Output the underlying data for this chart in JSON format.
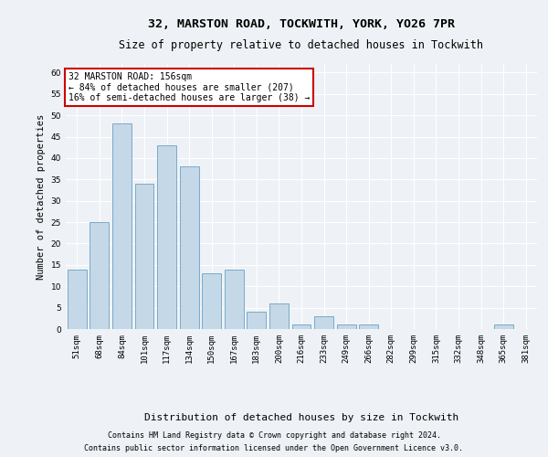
{
  "title": "32, MARSTON ROAD, TOCKWITH, YORK, YO26 7PR",
  "subtitle": "Size of property relative to detached houses in Tockwith",
  "xlabel": "Distribution of detached houses by size in Tockwith",
  "ylabel": "Number of detached properties",
  "categories": [
    "51sqm",
    "68sqm",
    "84sqm",
    "101sqm",
    "117sqm",
    "134sqm",
    "150sqm",
    "167sqm",
    "183sqm",
    "200sqm",
    "216sqm",
    "233sqm",
    "249sqm",
    "266sqm",
    "282sqm",
    "299sqm",
    "315sqm",
    "332sqm",
    "348sqm",
    "365sqm",
    "381sqm"
  ],
  "values": [
    14,
    25,
    48,
    34,
    43,
    38,
    13,
    14,
    4,
    6,
    1,
    3,
    1,
    1,
    0,
    0,
    0,
    0,
    0,
    1,
    0
  ],
  "bar_color": "#c5d8e8",
  "bar_edge_color": "#7aaac8",
  "bg_color": "#eef2f6",
  "ylim": [
    0,
    62
  ],
  "yticks": [
    0,
    5,
    10,
    15,
    20,
    25,
    30,
    35,
    40,
    45,
    50,
    55,
    60
  ],
  "annotation_box_text": "32 MARSTON ROAD: 156sqm\n← 84% of detached houses are smaller (207)\n16% of semi-detached houses are larger (38) →",
  "annotation_box_color": "#cc0000",
  "annotation_box_bg": "#ffffff",
  "footer_line1": "Contains HM Land Registry data © Crown copyright and database right 2024.",
  "footer_line2": "Contains public sector information licensed under the Open Government Licence v3.0.",
  "title_fontsize": 9.5,
  "subtitle_fontsize": 8.5,
  "xlabel_fontsize": 8,
  "ylabel_fontsize": 7.5,
  "tick_fontsize": 6.5,
  "annot_fontsize": 7,
  "footer_fontsize": 6
}
